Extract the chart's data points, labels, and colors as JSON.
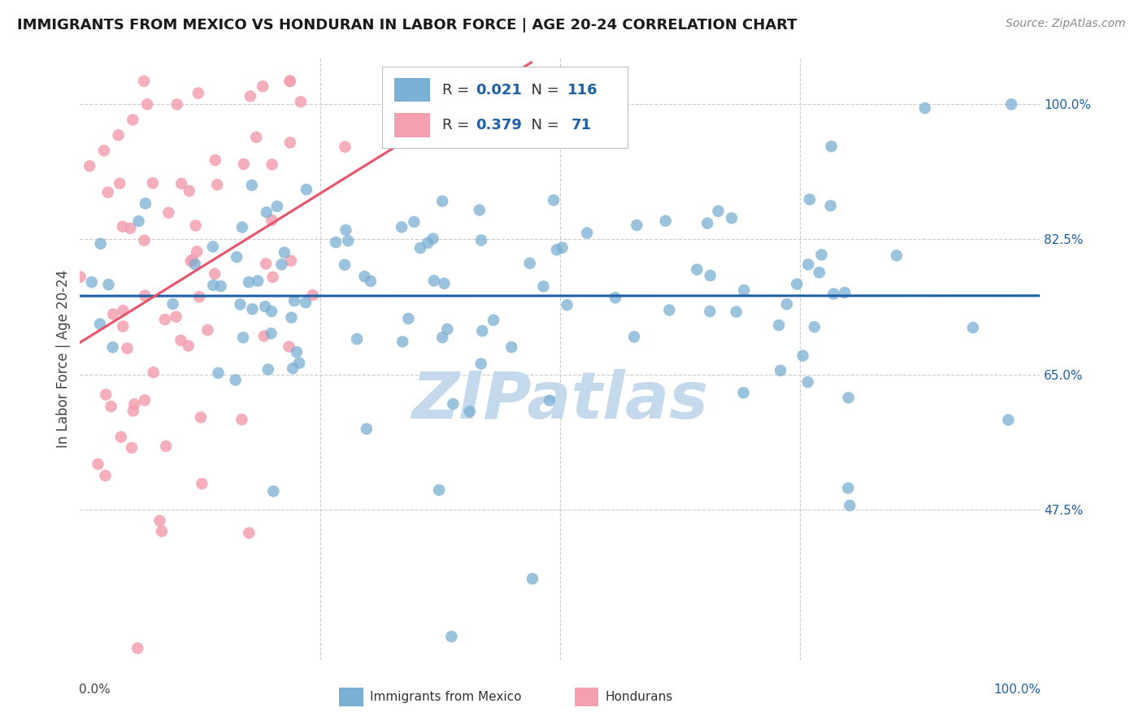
{
  "title": "IMMIGRANTS FROM MEXICO VS HONDURAN IN LABOR FORCE | AGE 20-24 CORRELATION CHART",
  "source": "Source: ZipAtlas.com",
  "ylabel": "In Labor Force | Age 20-24",
  "ytick_labels": [
    "47.5%",
    "65.0%",
    "82.5%",
    "100.0%"
  ],
  "ytick_values": [
    0.475,
    0.65,
    0.825,
    1.0
  ],
  "xlim": [
    0.0,
    1.0
  ],
  "ylim": [
    0.28,
    1.06
  ],
  "mexico_R": 0.021,
  "mexico_N": 116,
  "honduran_R": 0.379,
  "honduran_N": 71,
  "mexico_color": "#7bafd4",
  "honduran_color": "#f4a0b0",
  "mexico_trend_color": "#1f5fa6",
  "honduran_trend_color": "#e8546a",
  "background_color": "#ffffff",
  "watermark": "ZIPatlas",
  "watermark_color": "#c5d9ed",
  "legend_box_color": "#e8e8e8",
  "title_fontsize": 13,
  "source_fontsize": 10,
  "ytick_fontsize": 11,
  "legend_fontsize": 13
}
